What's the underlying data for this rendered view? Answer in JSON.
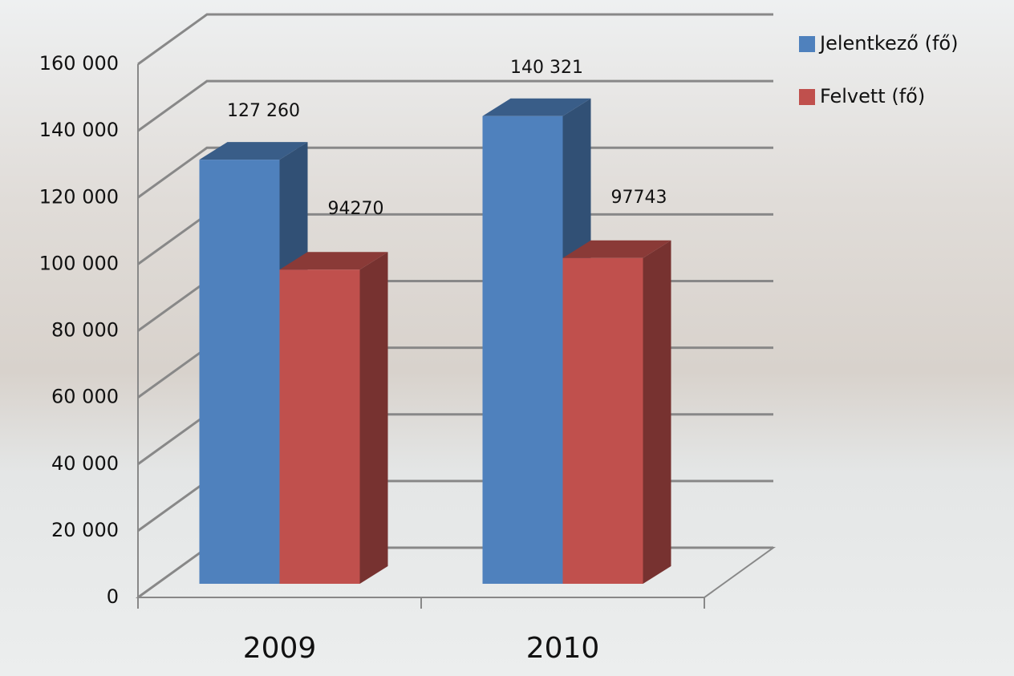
{
  "chart_data": {
    "type": "bar3d",
    "categories": [
      "2009",
      "2010"
    ],
    "series": [
      {
        "name": "Jelentkező (fő)",
        "color": "#4f81bd",
        "values": [
          127260,
          140321
        ],
        "value_labels": [
          "127 260",
          "140 321"
        ]
      },
      {
        "name": "Felvett (fő)",
        "color": "#c0504d",
        "values": [
          94270,
          97743
        ],
        "value_labels": [
          "94270",
          "97743"
        ]
      }
    ],
    "ylim": [
      0,
      160000
    ],
    "yticks": [
      0,
      {
        "value": 20000,
        "label": "20 000"
      },
      {
        "value": 40000,
        "label": "40 000"
      },
      {
        "value": 60000,
        "label": "60 000"
      },
      {
        "value": 80000,
        "label": "80 000"
      },
      {
        "value": 100000,
        "label": "100 000"
      },
      {
        "value": 120000,
        "label": "120 000"
      },
      {
        "value": 140000,
        "label": "140 000"
      },
      {
        "value": 160000,
        "label": "160 000"
      }
    ],
    "grid": true,
    "legend": "top-right"
  }
}
